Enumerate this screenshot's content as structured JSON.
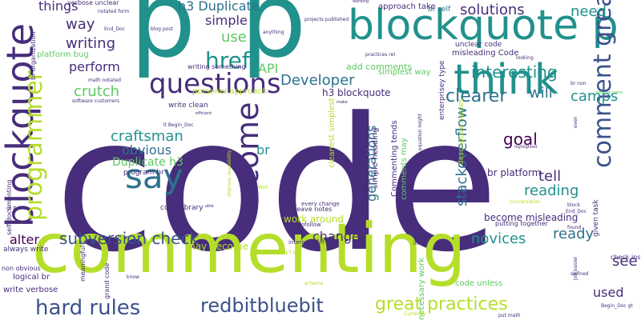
{
  "colors": {
    "purple": "#472d7b",
    "teal": "#21918c",
    "blue": "#3b528b",
    "green": "#5ec962",
    "lime": "#b5de2b",
    "dark_purple": "#440154",
    "mid_teal": "#2c728e"
  },
  "words": [
    {
      "text": "code",
      "color": "purple"
    },
    {
      "text": "commenting",
      "color": "lime"
    },
    {
      "text": "p",
      "color": "teal"
    },
    {
      "text": "p",
      "color": "teal"
    },
    {
      "text": "blockquote p",
      "color": "teal"
    },
    {
      "text": "blockquote",
      "color": "purple"
    },
    {
      "text": "think",
      "color": "teal"
    },
    {
      "text": "questions",
      "color": "purple"
    },
    {
      "text": "say",
      "color": "mid_teal"
    },
    {
      "text": "comment great",
      "color": "blue"
    },
    {
      "text": "come",
      "color": "purple"
    },
    {
      "text": "programmer",
      "color": "lime"
    },
    {
      "text": "hard rules",
      "color": "blue"
    },
    {
      "text": "redbitbluebit",
      "color": "blue"
    },
    {
      "text": "subversion check",
      "color": "blue"
    },
    {
      "text": "great practices",
      "color": "lime"
    },
    {
      "text": "href",
      "color": "teal"
    },
    {
      "text": "clearer",
      "color": "mid_teal"
    },
    {
      "text": "interesting",
      "color": "teal"
    },
    {
      "text": "Developer",
      "color": "mid_teal"
    },
    {
      "text": "craftsman",
      "color": "teal"
    },
    {
      "text": "obvious",
      "color": "mid_teal"
    },
    {
      "text": "goal",
      "color": "dark_purple"
    },
    {
      "text": "tell",
      "color": "purple"
    },
    {
      "text": "reading",
      "color": "teal"
    },
    {
      "text": "novices",
      "color": "teal"
    },
    {
      "text": "ready",
      "color": "mid_teal"
    },
    {
      "text": "change",
      "color": "purple"
    },
    {
      "text": "alter",
      "color": "dark_purple"
    },
    {
      "text": "writing",
      "color": "purple"
    },
    {
      "text": "way",
      "color": "purple"
    },
    {
      "text": "perform",
      "color": "purple"
    },
    {
      "text": "crutch",
      "color": "green"
    },
    {
      "text": "things",
      "color": "purple"
    },
    {
      "text": "h3 Duplicate",
      "color": "mid_teal"
    },
    {
      "text": "solutions",
      "color": "purple"
    },
    {
      "text": "need",
      "color": "teal"
    },
    {
      "text": "simple",
      "color": "purple"
    },
    {
      "text": "use",
      "color": "green"
    },
    {
      "text": "API",
      "color": "green"
    },
    {
      "text": "will",
      "color": "mid_teal"
    },
    {
      "text": "camps",
      "color": "teal"
    },
    {
      "text": "br",
      "color": "teal"
    },
    {
      "text": "see",
      "color": "purple"
    },
    {
      "text": "used",
      "color": "purple"
    },
    {
      "text": "stackoverflow",
      "color": "mid_teal"
    },
    {
      "text": "generations",
      "color": "mid_teal"
    },
    {
      "text": "Duplicate h3",
      "color": "green"
    },
    {
      "text": "h3 blockquote",
      "color": "purple"
    },
    {
      "text": "br platform",
      "color": "purple"
    },
    {
      "text": "become misleading",
      "color": "purple"
    },
    {
      "text": "work around",
      "color": "lime"
    },
    {
      "text": "may become",
      "color": "lime"
    },
    {
      "text": "code library",
      "color": "purple"
    },
    {
      "text": "approach take",
      "color": "purple"
    },
    {
      "text": "br self",
      "color": "mid_teal"
    },
    {
      "text": "add comments",
      "color": "green"
    },
    {
      "text": "simplest way",
      "color": "green"
    },
    {
      "text": "unclear code",
      "color": "purple"
    },
    {
      "text": "misleading Code",
      "color": "purple"
    },
    {
      "text": "platform bug",
      "color": "green"
    },
    {
      "text": "writing something",
      "color": "purple"
    },
    {
      "text": "personal approach",
      "color": "lime"
    },
    {
      "text": "write clean",
      "color": "purple"
    },
    {
      "text": "program br",
      "color": "purple"
    },
    {
      "text": "logical br",
      "color": "purple"
    },
    {
      "text": "write verbose",
      "color": "purple"
    },
    {
      "text": "always write",
      "color": "purple"
    },
    {
      "text": "non obvious",
      "color": "purple"
    },
    {
      "text": "self documenting",
      "color": "purple"
    },
    {
      "text": "necessary work",
      "color": "green"
    },
    {
      "text": "code unless",
      "color": "green"
    },
    {
      "text": "comments may",
      "color": "green"
    },
    {
      "text": "simple heading",
      "color": "purple"
    },
    {
      "text": "Commenting tends",
      "color": "purple"
    },
    {
      "text": "something complex",
      "color": "purple"
    },
    {
      "text": "cleanest simplest",
      "color": "lime"
    },
    {
      "text": "descriptive names",
      "color": "lime"
    },
    {
      "text": "enterprisey type",
      "color": "purple"
    },
    {
      "text": "given task",
      "color": "purple"
    },
    {
      "text": "check ins",
      "color": "purple"
    },
    {
      "text": "leave notes",
      "color": "purple"
    },
    {
      "text": "internal stuff",
      "color": "purple"
    },
    {
      "text": "grand code",
      "color": "purple"
    },
    {
      "text": "meaningful",
      "color": "purple"
    },
    {
      "text": "know",
      "color": "purple"
    },
    {
      "text": "every change",
      "color": "purple"
    },
    {
      "text": "rel nofollow",
      "color": "purple"
    },
    {
      "text": "putting together",
      "color": "purple"
    },
    {
      "text": "verbose unclear",
      "color": "purple"
    },
    {
      "text": "notated form",
      "color": "purple"
    },
    {
      "text": "math notated",
      "color": "purple"
    },
    {
      "text": "software customers",
      "color": "purple"
    },
    {
      "text": "br organization",
      "color": "purple"
    },
    {
      "text": "End_Doc",
      "color": "purple"
    },
    {
      "text": "blog post",
      "color": "purple"
    },
    {
      "text": "anything",
      "color": "purple"
    },
    {
      "text": "projects published",
      "color": "purple"
    },
    {
      "text": "practices rel",
      "color": "purple"
    },
    {
      "text": "looking",
      "color": "purple"
    },
    {
      "text": "br non",
      "color": "purple"
    },
    {
      "text": "make",
      "color": "purple"
    },
    {
      "text": "release notes",
      "color": "green"
    },
    {
      "text": "lt Begin_Doc",
      "color": "purple"
    },
    {
      "text": "equation might",
      "color": "purple"
    },
    {
      "text": "improve readability",
      "color": "lime"
    },
    {
      "text": "able",
      "color": "purple"
    },
    {
      "text": "Well",
      "color": "lime"
    },
    {
      "text": "conversation",
      "color": "lime"
    },
    {
      "text": "End_Doc",
      "color": "purple"
    },
    {
      "text": "block",
      "color": "purple"
    },
    {
      "text": "found",
      "color": "purple"
    },
    {
      "text": "job easier",
      "color": "purple"
    },
    {
      "text": "defined",
      "color": "purple"
    },
    {
      "text": "put math",
      "color": "purple"
    },
    {
      "text": "Begin_Doc gt",
      "color": "purple"
    },
    {
      "text": "scheme",
      "color": "lime"
    },
    {
      "text": "lot",
      "color": "purple"
    },
    {
      "text": "Currently",
      "color": "lime"
    },
    {
      "text": "NET btw",
      "color": "lime"
    },
    {
      "text": "gt lt",
      "color": "purple"
    },
    {
      "text": "highlighted",
      "color": "purple"
    },
    {
      "text": "even",
      "color": "purple"
    },
    {
      "text": "efficient",
      "color": "purple"
    },
    {
      "text": "wording",
      "color": "purple"
    }
  ]
}
